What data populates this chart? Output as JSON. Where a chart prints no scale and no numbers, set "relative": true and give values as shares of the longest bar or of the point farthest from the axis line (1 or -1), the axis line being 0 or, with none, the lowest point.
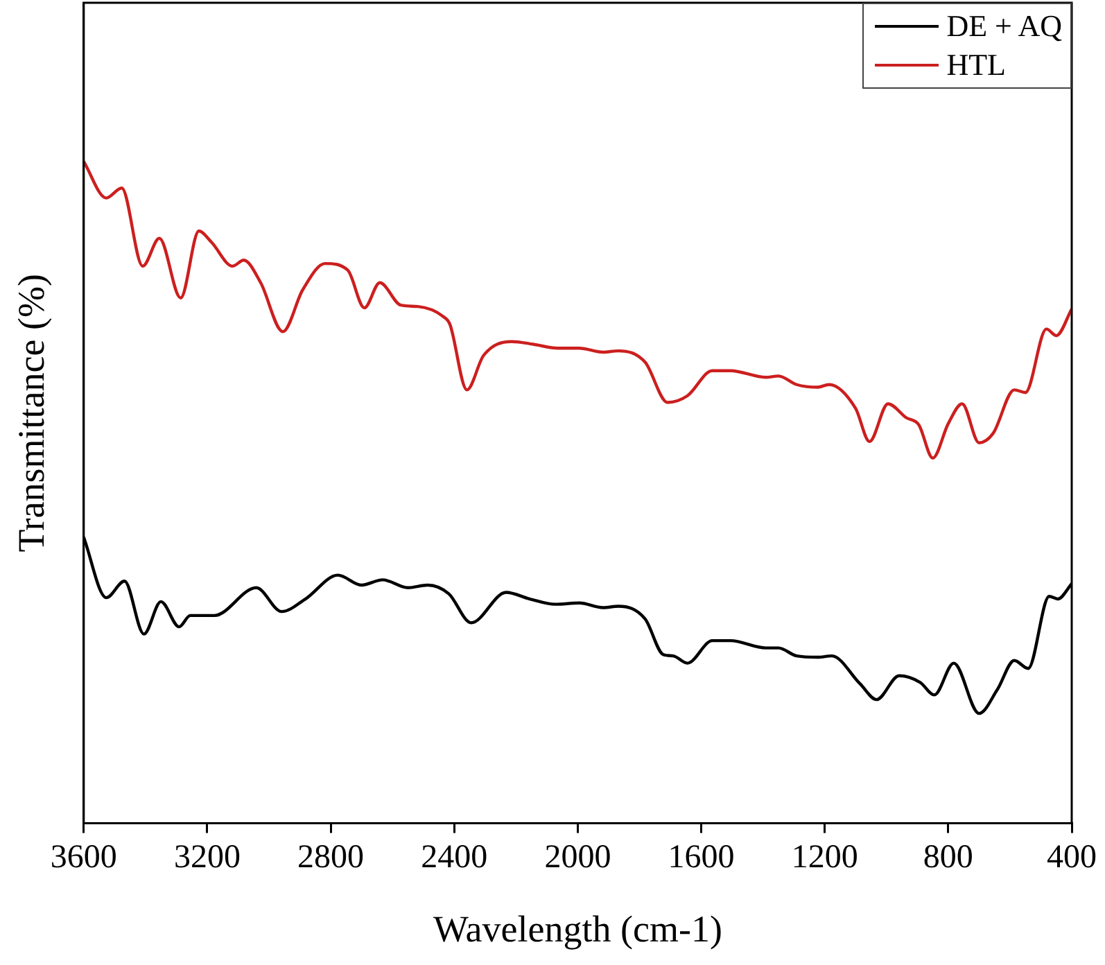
{
  "chart_data": {
    "type": "line",
    "xlabel": "Wavelength (cm-1)",
    "ylabel": "Transmittance (%)",
    "relative": true,
    "xlim": [
      3600,
      400
    ],
    "xticks": [
      3600,
      3200,
      2800,
      2400,
      2000,
      1600,
      1200,
      800,
      400
    ],
    "legend": "top right",
    "grid": false,
    "marker": "none",
    "line_style": "solid",
    "series": [
      {
        "name": "DE + AQ",
        "color": "#000000",
        "x": [
          3600,
          3527,
          3468,
          3405,
          3350,
          3291,
          3255,
          3177,
          3041,
          2959,
          2882,
          2777,
          2700,
          2632,
          2550,
          2486,
          2418,
          2345,
          2232,
          2155,
          2073,
          1995,
          1918,
          1868,
          1782,
          1723,
          1691,
          1645,
          1564,
          1505,
          1391,
          1350,
          1291,
          1223,
          1177,
          1086,
          1032,
          959,
          891,
          845,
          782,
          700,
          641,
          586,
          541,
          473,
          445,
          400
        ],
        "values": [
          0.432,
          0.341,
          0.366,
          0.286,
          0.335,
          0.297,
          0.314,
          0.314,
          0.356,
          0.32,
          0.339,
          0.375,
          0.36,
          0.368,
          0.356,
          0.36,
          0.347,
          0.303,
          0.349,
          0.339,
          0.331,
          0.333,
          0.326,
          0.328,
          0.309,
          0.255,
          0.253,
          0.242,
          0.276,
          0.276,
          0.265,
          0.265,
          0.253,
          0.251,
          0.253,
          0.211,
          0.187,
          0.223,
          0.213,
          0.194,
          0.242,
          0.166,
          0.202,
          0.246,
          0.234,
          0.343,
          0.339,
          0.362
        ]
      },
      {
        "name": "HTL",
        "color": "#cc1f1f",
        "x": [
          3600,
          3527,
          3477,
          3409,
          3355,
          3286,
          3227,
          3186,
          3118,
          3082,
          3027,
          2955,
          2891,
          2818,
          2745,
          2691,
          2641,
          2573,
          2518,
          2436,
          2414,
          2359,
          2305,
          2214,
          2145,
          2064,
          1995,
          1918,
          1868,
          1782,
          1709,
          1645,
          1564,
          1505,
          1391,
          1350,
          1291,
          1223,
          1186,
          1100,
          1055,
          995,
          936,
          895,
          850,
          800,
          755,
          700,
          655,
          586,
          550,
          482,
          450,
          400
        ],
        "values": [
          1,
          0.945,
          0.96,
          0.842,
          0.884,
          0.794,
          0.895,
          0.878,
          0.842,
          0.851,
          0.817,
          0.743,
          0.806,
          0.846,
          0.836,
          0.779,
          0.817,
          0.783,
          0.781,
          0.766,
          0.754,
          0.655,
          0.707,
          0.728,
          0.724,
          0.718,
          0.718,
          0.712,
          0.714,
          0.697,
          0.636,
          0.646,
          0.684,
          0.684,
          0.674,
          0.676,
          0.663,
          0.659,
          0.663,
          0.627,
          0.577,
          0.634,
          0.613,
          0.602,
          0.552,
          0.604,
          0.634,
          0.575,
          0.589,
          0.655,
          0.651,
          0.747,
          0.737,
          0.777
        ]
      }
    ]
  }
}
